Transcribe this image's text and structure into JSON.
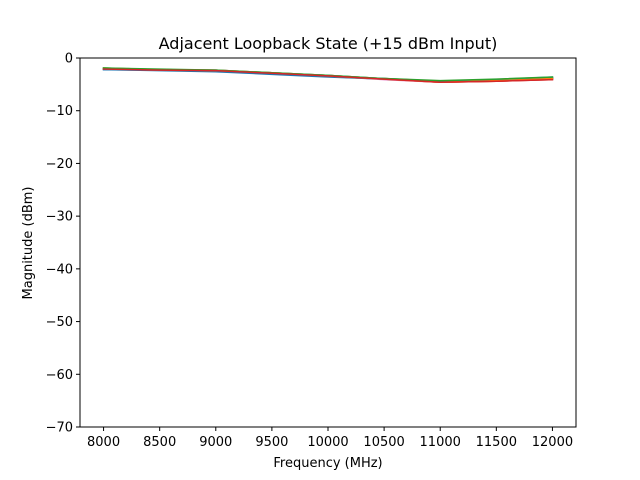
{
  "chart_data": {
    "type": "line",
    "title": "Adjacent Loopback State (+15 dBm Input)",
    "xlabel": "Frequency (MHz)",
    "ylabel": "Magnitude (dBm)",
    "xlim": [
      7790,
      12210
    ],
    "ylim": [
      -70,
      0
    ],
    "xticks": [
      8000,
      8500,
      9000,
      9500,
      10000,
      10500,
      11000,
      11500,
      12000
    ],
    "yticks": [
      0,
      -10,
      -20,
      -30,
      -40,
      -50,
      -60,
      -70
    ],
    "grid": false,
    "x": [
      8000,
      8500,
      9000,
      9500,
      10000,
      10500,
      11000,
      11500,
      12000
    ],
    "series": [
      {
        "color": "#1f77b4",
        "values": [
          -2.2,
          -2.4,
          -2.6,
          -3.1,
          -3.6,
          -4.0,
          -4.5,
          -4.3,
          -3.9
        ]
      },
      {
        "color": "#ff7f0e",
        "values": [
          -2.0,
          -2.3,
          -2.4,
          -2.8,
          -3.3,
          -3.9,
          -4.6,
          -4.4,
          -4.0
        ]
      },
      {
        "color": "#2ca02c",
        "values": [
          -1.9,
          -2.2,
          -2.3,
          -2.9,
          -3.4,
          -4.0,
          -4.4,
          -4.1,
          -3.7
        ]
      },
      {
        "color": "#d62728",
        "values": [
          -2.1,
          -2.3,
          -2.4,
          -2.9,
          -3.5,
          -4.0,
          -4.6,
          -4.4,
          -4.1
        ]
      },
      {
        "color": "#9467bd",
        "values": [
          -2.0,
          -2.2,
          -2.3,
          -2.8,
          -3.4,
          -3.9,
          -4.5,
          -4.3,
          -3.9
        ]
      },
      {
        "color": "#8c564b",
        "values": [
          -2.1,
          -2.2,
          -2.4,
          -2.9,
          -3.3,
          -4.0,
          -4.5,
          -4.2,
          -3.8
        ]
      },
      {
        "color": "#e377c2",
        "values": [
          -2.0,
          -2.3,
          -2.3,
          -2.8,
          -3.4,
          -4.1,
          -4.6,
          -4.3,
          -4.0
        ]
      },
      {
        "color": "#7f7f7f",
        "values": [
          -2.1,
          -2.3,
          -2.5,
          -2.9,
          -3.5,
          -4.0,
          -4.5,
          -4.3,
          -3.9
        ]
      },
      {
        "color": "#bcbd22",
        "values": [
          -1.9,
          -2.2,
          -2.3,
          -2.8,
          -3.3,
          -3.9,
          -4.4,
          -4.2,
          -3.8
        ]
      },
      {
        "color": "#17becf",
        "values": [
          -2.0,
          -2.2,
          -2.4,
          -2.8,
          -3.3,
          -3.9,
          -4.4,
          -4.1,
          -3.6
        ]
      },
      {
        "color": "#1f77b4",
        "values": [
          -2.2,
          -2.3,
          -2.5,
          -3.0,
          -3.5,
          -4.0,
          -4.5,
          -4.3,
          -3.9
        ]
      },
      {
        "color": "#ff7f0e",
        "values": [
          -2.0,
          -2.2,
          -2.4,
          -2.8,
          -3.4,
          -4.0,
          -4.6,
          -4.3,
          -3.9
        ]
      },
      {
        "color": "#2ca02c",
        "values": [
          -1.9,
          -2.1,
          -2.3,
          -2.8,
          -3.3,
          -3.9,
          -4.3,
          -4.0,
          -3.6
        ]
      },
      {
        "color": "#d62728",
        "values": [
          -2.1,
          -2.3,
          -2.4,
          -2.9,
          -3.4,
          -4.0,
          -4.6,
          -4.4,
          -4.1
        ]
      }
    ]
  }
}
